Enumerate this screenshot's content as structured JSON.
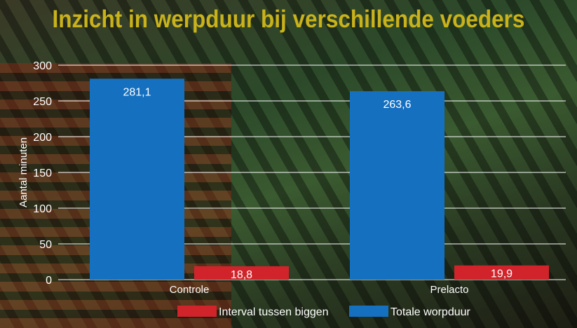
{
  "chart_data": {
    "type": "bar",
    "title": "Inzicht in werpduur bij verschillende voeders",
    "ylabel": "Aantal minuten",
    "xlabel": "",
    "ylim": [
      0,
      300
    ],
    "yticks": [
      0,
      50,
      100,
      150,
      200,
      250,
      300
    ],
    "categories": [
      "Controle",
      "Prelacto"
    ],
    "series": [
      {
        "name": "Totale worpduur",
        "color": "#1570c0",
        "values": [
          281.1,
          263.6
        ],
        "labels": [
          "281,1",
          "263,6"
        ]
      },
      {
        "name": "Interval tussen biggen",
        "color": "#d0242a",
        "values": [
          18.8,
          19.9
        ],
        "labels": [
          "18,8",
          "19,9"
        ]
      }
    ],
    "legend": {
      "placement": "bottom",
      "order": [
        "Interval tussen biggen",
        "Totale worpduur"
      ]
    },
    "grid": true
  }
}
